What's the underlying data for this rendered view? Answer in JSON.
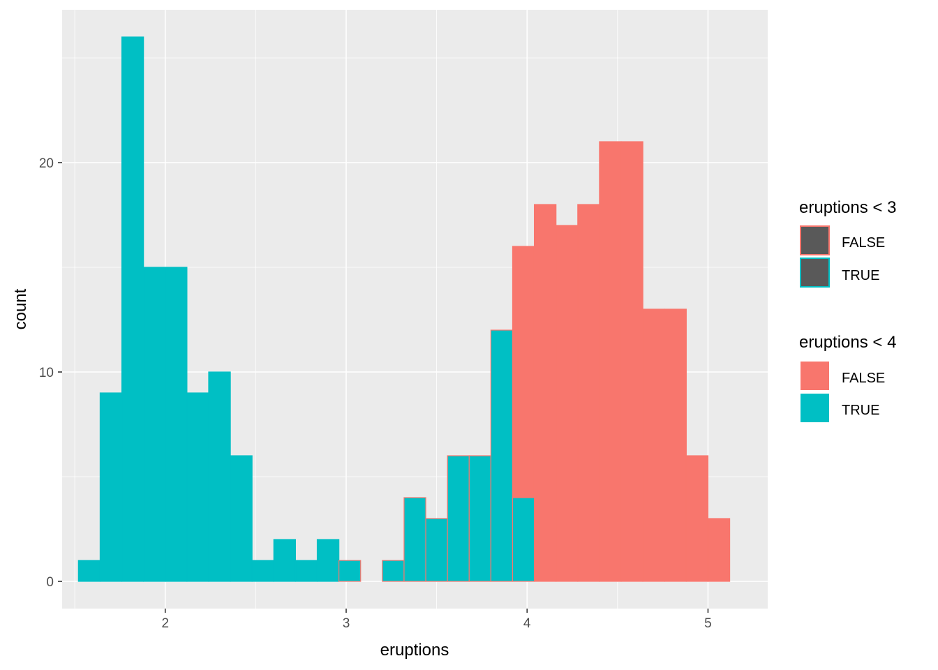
{
  "chart_data": {
    "type": "bar",
    "subtype": "histogram",
    "title": "",
    "xlabel": "eruptions",
    "ylabel": "count",
    "xlim": [
      1.43,
      5.33
    ],
    "ylim": [
      -1.3,
      27.3
    ],
    "x_ticks": [
      2,
      3,
      4,
      5
    ],
    "y_ticks": [
      0,
      10,
      20
    ],
    "grid": true,
    "legend_position": "right",
    "bin_width": 0.12,
    "bins": [
      {
        "x_min": 1.52,
        "x_max": 1.64,
        "true": 1,
        "false": 0
      },
      {
        "x_min": 1.64,
        "x_max": 1.76,
        "true": 9,
        "false": 0
      },
      {
        "x_min": 1.76,
        "x_max": 1.88,
        "true": 26,
        "false": 0
      },
      {
        "x_min": 1.88,
        "x_max": 2.0,
        "true": 15,
        "false": 0
      },
      {
        "x_min": 2.0,
        "x_max": 2.12,
        "true": 15,
        "false": 0
      },
      {
        "x_min": 2.12,
        "x_max": 2.24,
        "true": 9,
        "false": 0
      },
      {
        "x_min": 2.24,
        "x_max": 2.36,
        "true": 10,
        "false": 0
      },
      {
        "x_min": 2.36,
        "x_max": 2.48,
        "true": 6,
        "false": 0
      },
      {
        "x_min": 2.48,
        "x_max": 2.6,
        "true": 1,
        "false": 0
      },
      {
        "x_min": 2.6,
        "x_max": 2.72,
        "true": 2,
        "false": 0
      },
      {
        "x_min": 2.72,
        "x_max": 2.84,
        "true": 1,
        "false": 0
      },
      {
        "x_min": 2.84,
        "x_max": 2.96,
        "true": 2,
        "false": 0
      },
      {
        "x_min": 2.96,
        "x_max": 3.08,
        "true": 1,
        "false": 0
      },
      {
        "x_min": 3.08,
        "x_max": 3.2,
        "true": 0,
        "false": 0
      },
      {
        "x_min": 3.2,
        "x_max": 3.32,
        "true": 1,
        "false": 0
      },
      {
        "x_min": 3.32,
        "x_max": 3.44,
        "true": 4,
        "false": 0
      },
      {
        "x_min": 3.44,
        "x_max": 3.56,
        "true": 3,
        "false": 0
      },
      {
        "x_min": 3.56,
        "x_max": 3.68,
        "true": 6,
        "false": 0
      },
      {
        "x_min": 3.68,
        "x_max": 3.8,
        "true": 6,
        "false": 0
      },
      {
        "x_min": 3.8,
        "x_max": 3.92,
        "true": 12,
        "false": 0
      },
      {
        "x_min": 3.92,
        "x_max": 4.04,
        "true": 4,
        "false": 12
      },
      {
        "x_min": 4.04,
        "x_max": 4.16,
        "true": 0,
        "false": 18
      },
      {
        "x_min": 4.16,
        "x_max": 4.28,
        "true": 0,
        "false": 17
      },
      {
        "x_min": 4.28,
        "x_max": 4.4,
        "true": 0,
        "false": 18
      },
      {
        "x_min": 4.4,
        "x_max": 4.52,
        "true": 0,
        "false": 21
      },
      {
        "x_min": 4.52,
        "x_max": 4.64,
        "true": 0,
        "false": 21
      },
      {
        "x_min": 4.64,
        "x_max": 4.76,
        "true": 0,
        "false": 13
      },
      {
        "x_min": 4.76,
        "x_max": 4.88,
        "true": 0,
        "false": 13
      },
      {
        "x_min": 4.88,
        "x_max": 5.0,
        "true": 0,
        "false": 6
      },
      {
        "x_min": 5.0,
        "x_max": 5.12,
        "true": 0,
        "false": 3
      }
    ],
    "legends": [
      {
        "title": "eruptions < 3",
        "aesthetic": "colour",
        "entries": [
          {
            "label": "FALSE",
            "color": "#F8766D"
          },
          {
            "label": "TRUE",
            "color": "#00BFC4"
          }
        ]
      },
      {
        "title": "eruptions < 4",
        "aesthetic": "fill",
        "entries": [
          {
            "label": "FALSE",
            "color": "#F8766D"
          },
          {
            "label": "TRUE",
            "color": "#00BFC4"
          }
        ]
      }
    ],
    "colors": {
      "false": "#F8766D",
      "true": "#00BFC4",
      "panel_background": "#EBEBEB",
      "grid": "#FFFFFF",
      "legend_key_fill": "#595959"
    }
  }
}
